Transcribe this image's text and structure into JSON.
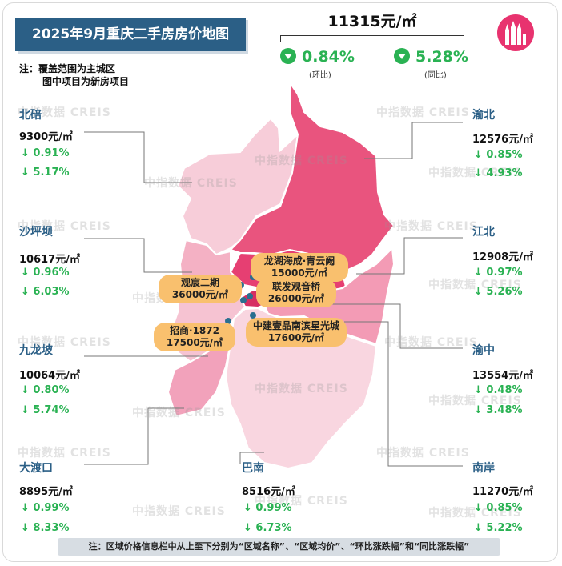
{
  "title": "2025年9月重庆二手房房价地图",
  "note": {
    "line1": "注：覆盖范围为主城区",
    "line2": "图中项目为新房项目"
  },
  "overall": {
    "avg_price": "11315元/㎡",
    "mom": {
      "value": "0.84%",
      "label": "(环比)"
    },
    "yoy": {
      "value": "5.28%",
      "label": "(同比)"
    }
  },
  "watermark": "中指数据 CREIS",
  "colors": {
    "title_bg": "#2b5f86",
    "down_green": "#2ab253",
    "district_name": "#2b5f86",
    "project_bg": "#f9c06e",
    "logo": "#e8336f"
  },
  "icons": {
    "down_change": "down-triangle-circle-icon",
    "logo": "city-skyline-icon"
  },
  "districts": [
    {
      "id": "beibei",
      "name": "北碚",
      "price": "9300元/㎡",
      "mom": "↓ 0.91%",
      "yoy": "↓ 5.17%"
    },
    {
      "id": "shapingba",
      "name": "沙坪坝",
      "price": "10617元/㎡",
      "mom": "↓ 0.96%",
      "yoy": "↓ 6.03%"
    },
    {
      "id": "jiulongpo",
      "name": "九龙坡",
      "price": "10064元/㎡",
      "mom": "↓ 0.80%",
      "yoy": "↓ 5.74%"
    },
    {
      "id": "dadukou",
      "name": "大渡口",
      "price": "8895元/㎡",
      "mom": "↓ 0.99%",
      "yoy": "↓ 8.33%"
    },
    {
      "id": "banan",
      "name": "巴南",
      "price": "8516元/㎡",
      "mom": "↓ 0.99%",
      "yoy": "↓ 6.73%"
    },
    {
      "id": "yubei",
      "name": "渝北",
      "price": "12576元/㎡",
      "mom": "↓ 0.85%",
      "yoy": "↓ 4.93%"
    },
    {
      "id": "jiangbei",
      "name": "江北",
      "price": "12908元/㎡",
      "mom": "↓ 0.97%",
      "yoy": "↓ 5.26%"
    },
    {
      "id": "yuzhong",
      "name": "渝中",
      "price": "13554元/㎡",
      "mom": "↓ 0.48%",
      "yoy": "↓ 3.48%"
    },
    {
      "id": "nanan",
      "name": "南岸",
      "price": "11270元/㎡",
      "mom": "↓ 0.85%",
      "yoy": "↓ 5.22%"
    }
  ],
  "projects": [
    {
      "name": "龙湖海成·青云阙",
      "price": "15000元/㎡"
    },
    {
      "name": "观宸二期",
      "price": "36000元/㎡"
    },
    {
      "name": "联发观音桥",
      "price": "26000元/㎡"
    },
    {
      "name": "招商·1872",
      "price": "17500元/㎡"
    },
    {
      "name": "中建壹品南滨星光城",
      "price": "17600元/㎡"
    }
  ],
  "footer": "注：区域价格信息栏中从上至下分别为“区域名称”、“区域均价”、“环比涨跌幅”和“同比涨跌幅”"
}
